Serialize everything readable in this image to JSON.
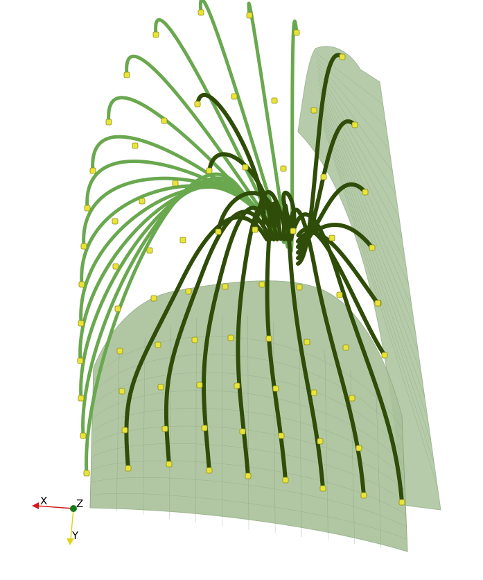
{
  "scene": {
    "colors": {
      "background": "#ffffff",
      "surface_fill": "#a9c29b",
      "surface_edge": "#93ad86",
      "surface_mesh": "#7f9a73",
      "streamline_dark": "#2f4d08",
      "streamline_light": "#6aa84f",
      "seed_marker": "#e8e43a",
      "axis_x": "#d11a1a",
      "axis_y": "#e6d21a",
      "axis_z": "#1a7a1a"
    },
    "orientation_axes": {
      "x_label": "X",
      "y_label": "Y",
      "z_label": "Z"
    }
  }
}
